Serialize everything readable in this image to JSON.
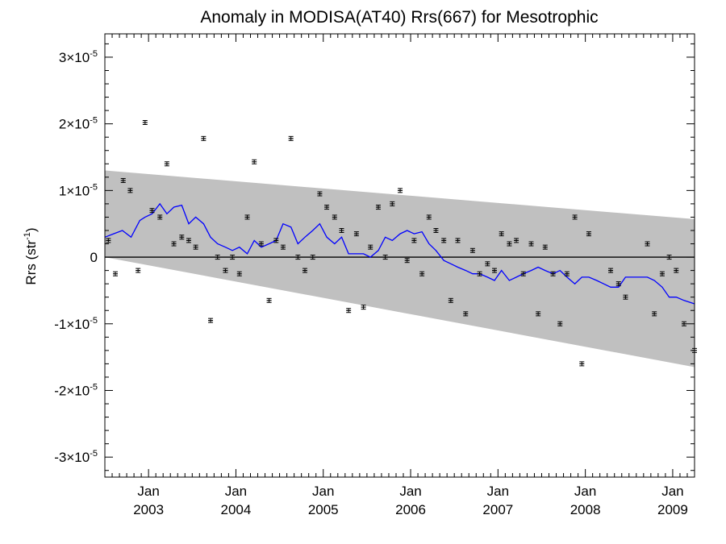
{
  "chart_data": {
    "type": "scatter",
    "title": "Anomaly in MODISA(AT40) Rrs(667) for Mesotrophic",
    "ylabel": {
      "base": "Rrs (str",
      "sup": "-1",
      "close": ")"
    },
    "xlabel": "",
    "xlim": [
      2002.5,
      2009.25
    ],
    "ylim": [
      -3.3e-05,
      3.35e-05
    ],
    "x_ticks": [
      {
        "value": 2003.0,
        "month": "Jan",
        "year": "2003"
      },
      {
        "value": 2004.0,
        "month": "Jan",
        "year": "2004"
      },
      {
        "value": 2005.0,
        "month": "Jan",
        "year": "2005"
      },
      {
        "value": 2006.0,
        "month": "Jan",
        "year": "2006"
      },
      {
        "value": 2007.0,
        "month": "Jan",
        "year": "2007"
      },
      {
        "value": 2008.0,
        "month": "Jan",
        "year": "2008"
      },
      {
        "value": 2009.0,
        "month": "Jan",
        "year": "2009"
      }
    ],
    "y_ticks": [
      {
        "value": 3e-05,
        "mant": "3",
        "times": "×10",
        "exp": "-5"
      },
      {
        "value": 2e-05,
        "mant": "2",
        "times": "×10",
        "exp": "-5"
      },
      {
        "value": 1e-05,
        "mant": "1",
        "times": "×10",
        "exp": "-5"
      },
      {
        "value": 0,
        "mant": "0",
        "times": "",
        "exp": ""
      },
      {
        "value": -1e-05,
        "mant": "-1",
        "times": "×10",
        "exp": "-5"
      },
      {
        "value": -2e-05,
        "mant": "-2",
        "times": "×10",
        "exp": "-5"
      },
      {
        "value": -3e-05,
        "mant": "-3",
        "times": "×10",
        "exp": "-5"
      }
    ],
    "grid": false,
    "legend": "none",
    "colors": {
      "band": "#c0c0c0",
      "running_mean": "#0000ff",
      "points": "#000000",
      "zero_line": "#000000"
    },
    "trend_band": {
      "x": [
        2002.5,
        2009.25
      ],
      "upper": [
        1.3e-05,
        5.7e-06
      ],
      "lower": [
        0,
        -1.65e-05
      ]
    },
    "series": [
      {
        "type": "scatter_errorbar",
        "x": [
          2002.54,
          2002.62,
          2002.71,
          2002.79,
          2002.88,
          2002.96,
          2003.04,
          2003.13,
          2003.21,
          2003.29,
          2003.38,
          2003.46,
          2003.54,
          2003.63,
          2003.71,
          2003.79,
          2003.88,
          2003.96,
          2004.04,
          2004.13,
          2004.21,
          2004.29,
          2004.38,
          2004.46,
          2004.54,
          2004.63,
          2004.71,
          2004.79,
          2004.88,
          2004.96,
          2005.04,
          2005.13,
          2005.21,
          2005.29,
          2005.38,
          2005.46,
          2005.54,
          2005.63,
          2005.71,
          2005.79,
          2005.88,
          2005.96,
          2006.04,
          2006.13,
          2006.21,
          2006.29,
          2006.38,
          2006.46,
          2006.54,
          2006.63,
          2006.71,
          2006.79,
          2006.88,
          2006.96,
          2007.04,
          2007.13,
          2007.21,
          2007.29,
          2007.38,
          2007.46,
          2007.54,
          2007.63,
          2007.71,
          2007.79,
          2007.88,
          2007.96,
          2008.04,
          2008.29,
          2008.38,
          2008.46,
          2008.71,
          2008.79,
          2008.88,
          2008.96,
          2009.04,
          2009.13,
          2009.25
        ],
        "y": [
          2.5e-06,
          -2.5e-06,
          1.15e-05,
          1e-05,
          -2e-06,
          2.02e-05,
          7e-06,
          6e-06,
          1.4e-05,
          2e-06,
          3e-06,
          2.5e-06,
          1.5e-06,
          1.78e-05,
          -9.5e-06,
          0,
          -2e-06,
          0,
          -2.5e-06,
          6e-06,
          1.43e-05,
          2e-06,
          -6.5e-06,
          2.5e-06,
          1.5e-06,
          1.78e-05,
          0,
          -2e-06,
          0,
          9.5e-06,
          7.5e-06,
          6e-06,
          4e-06,
          -8e-06,
          3.5e-06,
          -7.5e-06,
          1.5e-06,
          7.5e-06,
          0,
          8e-06,
          1e-05,
          -5e-07,
          2.5e-06,
          -2.5e-06,
          6e-06,
          4e-06,
          2.5e-06,
          -6.5e-06,
          2.5e-06,
          -8.5e-06,
          1e-06,
          -2.5e-06,
          -1e-06,
          -2e-06,
          3.5e-06,
          2e-06,
          2.5e-06,
          -2.5e-06,
          2e-06,
          -8.5e-06,
          1.5e-06,
          -2.5e-06,
          -1e-05,
          -2.5e-06,
          6e-06,
          -1.6e-05,
          3.5e-06,
          -2e-06,
          -4e-06,
          -6e-06,
          2e-06,
          -8.5e-06,
          -2.5e-06,
          0,
          -2e-06,
          -1e-05,
          -1.4e-05
        ]
      },
      {
        "type": "line",
        "x": [
          2002.5,
          2002.6,
          2002.7,
          2002.8,
          2002.9,
          2002.96,
          2003.04,
          2003.13,
          2003.21,
          2003.29,
          2003.38,
          2003.46,
          2003.54,
          2003.63,
          2003.71,
          2003.79,
          2003.88,
          2003.96,
          2004.04,
          2004.13,
          2004.21,
          2004.29,
          2004.38,
          2004.46,
          2004.54,
          2004.63,
          2004.71,
          2004.79,
          2004.88,
          2004.96,
          2005.04,
          2005.13,
          2005.21,
          2005.29,
          2005.38,
          2005.46,
          2005.54,
          2005.63,
          2005.71,
          2005.79,
          2005.88,
          2005.96,
          2006.04,
          2006.13,
          2006.21,
          2006.29,
          2006.38,
          2006.46,
          2006.54,
          2006.63,
          2006.71,
          2006.79,
          2006.88,
          2006.96,
          2007.04,
          2007.13,
          2007.21,
          2007.29,
          2007.38,
          2007.46,
          2007.54,
          2007.63,
          2007.71,
          2007.79,
          2007.88,
          2007.96,
          2008.04,
          2008.13,
          2008.21,
          2008.29,
          2008.38,
          2008.46,
          2008.54,
          2008.63,
          2008.71,
          2008.79,
          2008.88,
          2008.96,
          2009.04,
          2009.13,
          2009.25
        ],
        "y": [
          3e-06,
          3.5e-06,
          4e-06,
          3e-06,
          5.5e-06,
          6e-06,
          6.5e-06,
          8e-06,
          6.5e-06,
          7.5e-06,
          7.8e-06,
          5e-06,
          6e-06,
          5e-06,
          3e-06,
          2e-06,
          1.5e-06,
          1e-06,
          1.5e-06,
          5e-07,
          2.5e-06,
          1.5e-06,
          2e-06,
          2.5e-06,
          5e-06,
          4.5e-06,
          2e-06,
          3e-06,
          4e-06,
          5e-06,
          3e-06,
          2e-06,
          3e-06,
          5e-07,
          5e-07,
          5e-07,
          0,
          1e-06,
          3e-06,
          2.5e-06,
          3.5e-06,
          4e-06,
          3.5e-06,
          3.8e-06,
          2e-06,
          1e-06,
          -5e-07,
          -1e-06,
          -1.5e-06,
          -2e-06,
          -2.5e-06,
          -2.5e-06,
          -3e-06,
          -3.5e-06,
          -2e-06,
          -3.5e-06,
          -3e-06,
          -2.5e-06,
          -2e-06,
          -1.5e-06,
          -2e-06,
          -2.5e-06,
          -2e-06,
          -3e-06,
          -4e-06,
          -3e-06,
          -3e-06,
          -3.5e-06,
          -4e-06,
          -4.5e-06,
          -4.5e-06,
          -3e-06,
          -3e-06,
          -3e-06,
          -3e-06,
          -3.5e-06,
          -4.5e-06,
          -6e-06,
          -6e-06,
          -6.5e-06,
          -7e-06
        ]
      }
    ]
  }
}
